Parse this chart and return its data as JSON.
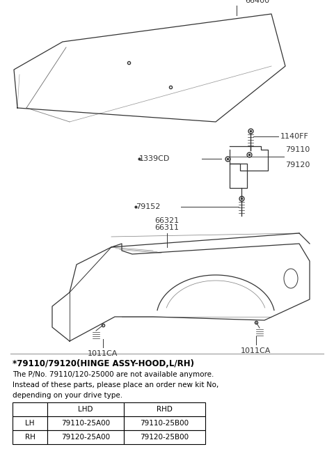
{
  "bg_color": "#ffffff",
  "note_line1": "*79110/79120(HINGE ASSY-HOOD,L/RH)",
  "note_line2": "The P/No. 79110/120-25000 are not available anymore.",
  "note_line3": "Instead of these parts, please place an order new kit No,",
  "note_line4": "depending on your drive type.",
  "table_headers": [
    "",
    "LHD",
    "RHD"
  ],
  "table_row1": [
    "LH",
    "79110-25A00",
    "79110-25B00"
  ],
  "table_row2": [
    "RH",
    "79120-25A00",
    "79120-25B00"
  ],
  "lc": "#333333"
}
